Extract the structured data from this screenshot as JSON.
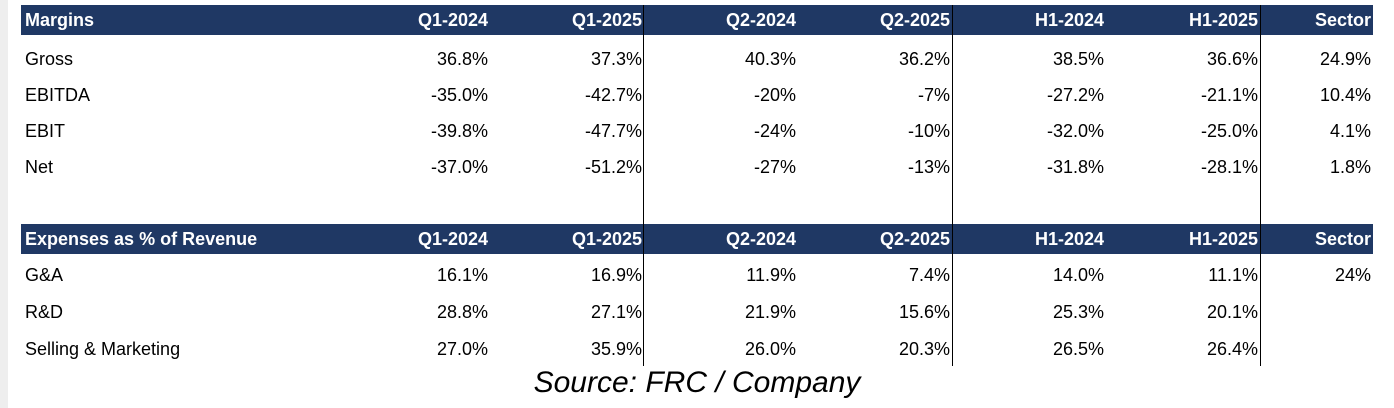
{
  "margins": {
    "header": [
      "Margins",
      "Q1-2024",
      "Q1-2025",
      "Q2-2024",
      "Q2-2025",
      "H1-2024",
      "H1-2025",
      "Sector"
    ],
    "rows": [
      [
        "Gross",
        "36.8%",
        "37.3%",
        "40.3%",
        "36.2%",
        "38.5%",
        "36.6%",
        "24.9%"
      ],
      [
        "EBITDA",
        "-35.0%",
        "-42.7%",
        "-20%",
        "-7%",
        "-27.2%",
        "-21.1%",
        "10.4%"
      ],
      [
        "EBIT",
        "-39.8%",
        "-47.7%",
        "-24%",
        "-10%",
        "-32.0%",
        "-25.0%",
        "4.1%"
      ],
      [
        "Net",
        "-37.0%",
        "-51.2%",
        "-27%",
        "-13%",
        "-31.8%",
        "-28.1%",
        "1.8%"
      ]
    ]
  },
  "expenses": {
    "header": [
      "Expenses as % of Revenue",
      "Q1-2024",
      "Q1-2025",
      "Q2-2024",
      "Q2-2025",
      "H1-2024",
      "H1-2025",
      "Sector"
    ],
    "rows": [
      [
        "G&A",
        "16.1%",
        "16.9%",
        "11.9%",
        "7.4%",
        "14.0%",
        "11.1%",
        "24%"
      ],
      [
        "R&D",
        "28.8%",
        "27.1%",
        "21.9%",
        "15.6%",
        "25.3%",
        "20.1%",
        ""
      ],
      [
        "Selling & Marketing",
        "27.0%",
        "35.9%",
        "26.0%",
        "20.3%",
        "26.5%",
        "26.4%",
        ""
      ]
    ]
  },
  "source": "Source: FRC / Company",
  "colors": {
    "header_bg": "#1f3864",
    "header_text": "#ffffff"
  }
}
